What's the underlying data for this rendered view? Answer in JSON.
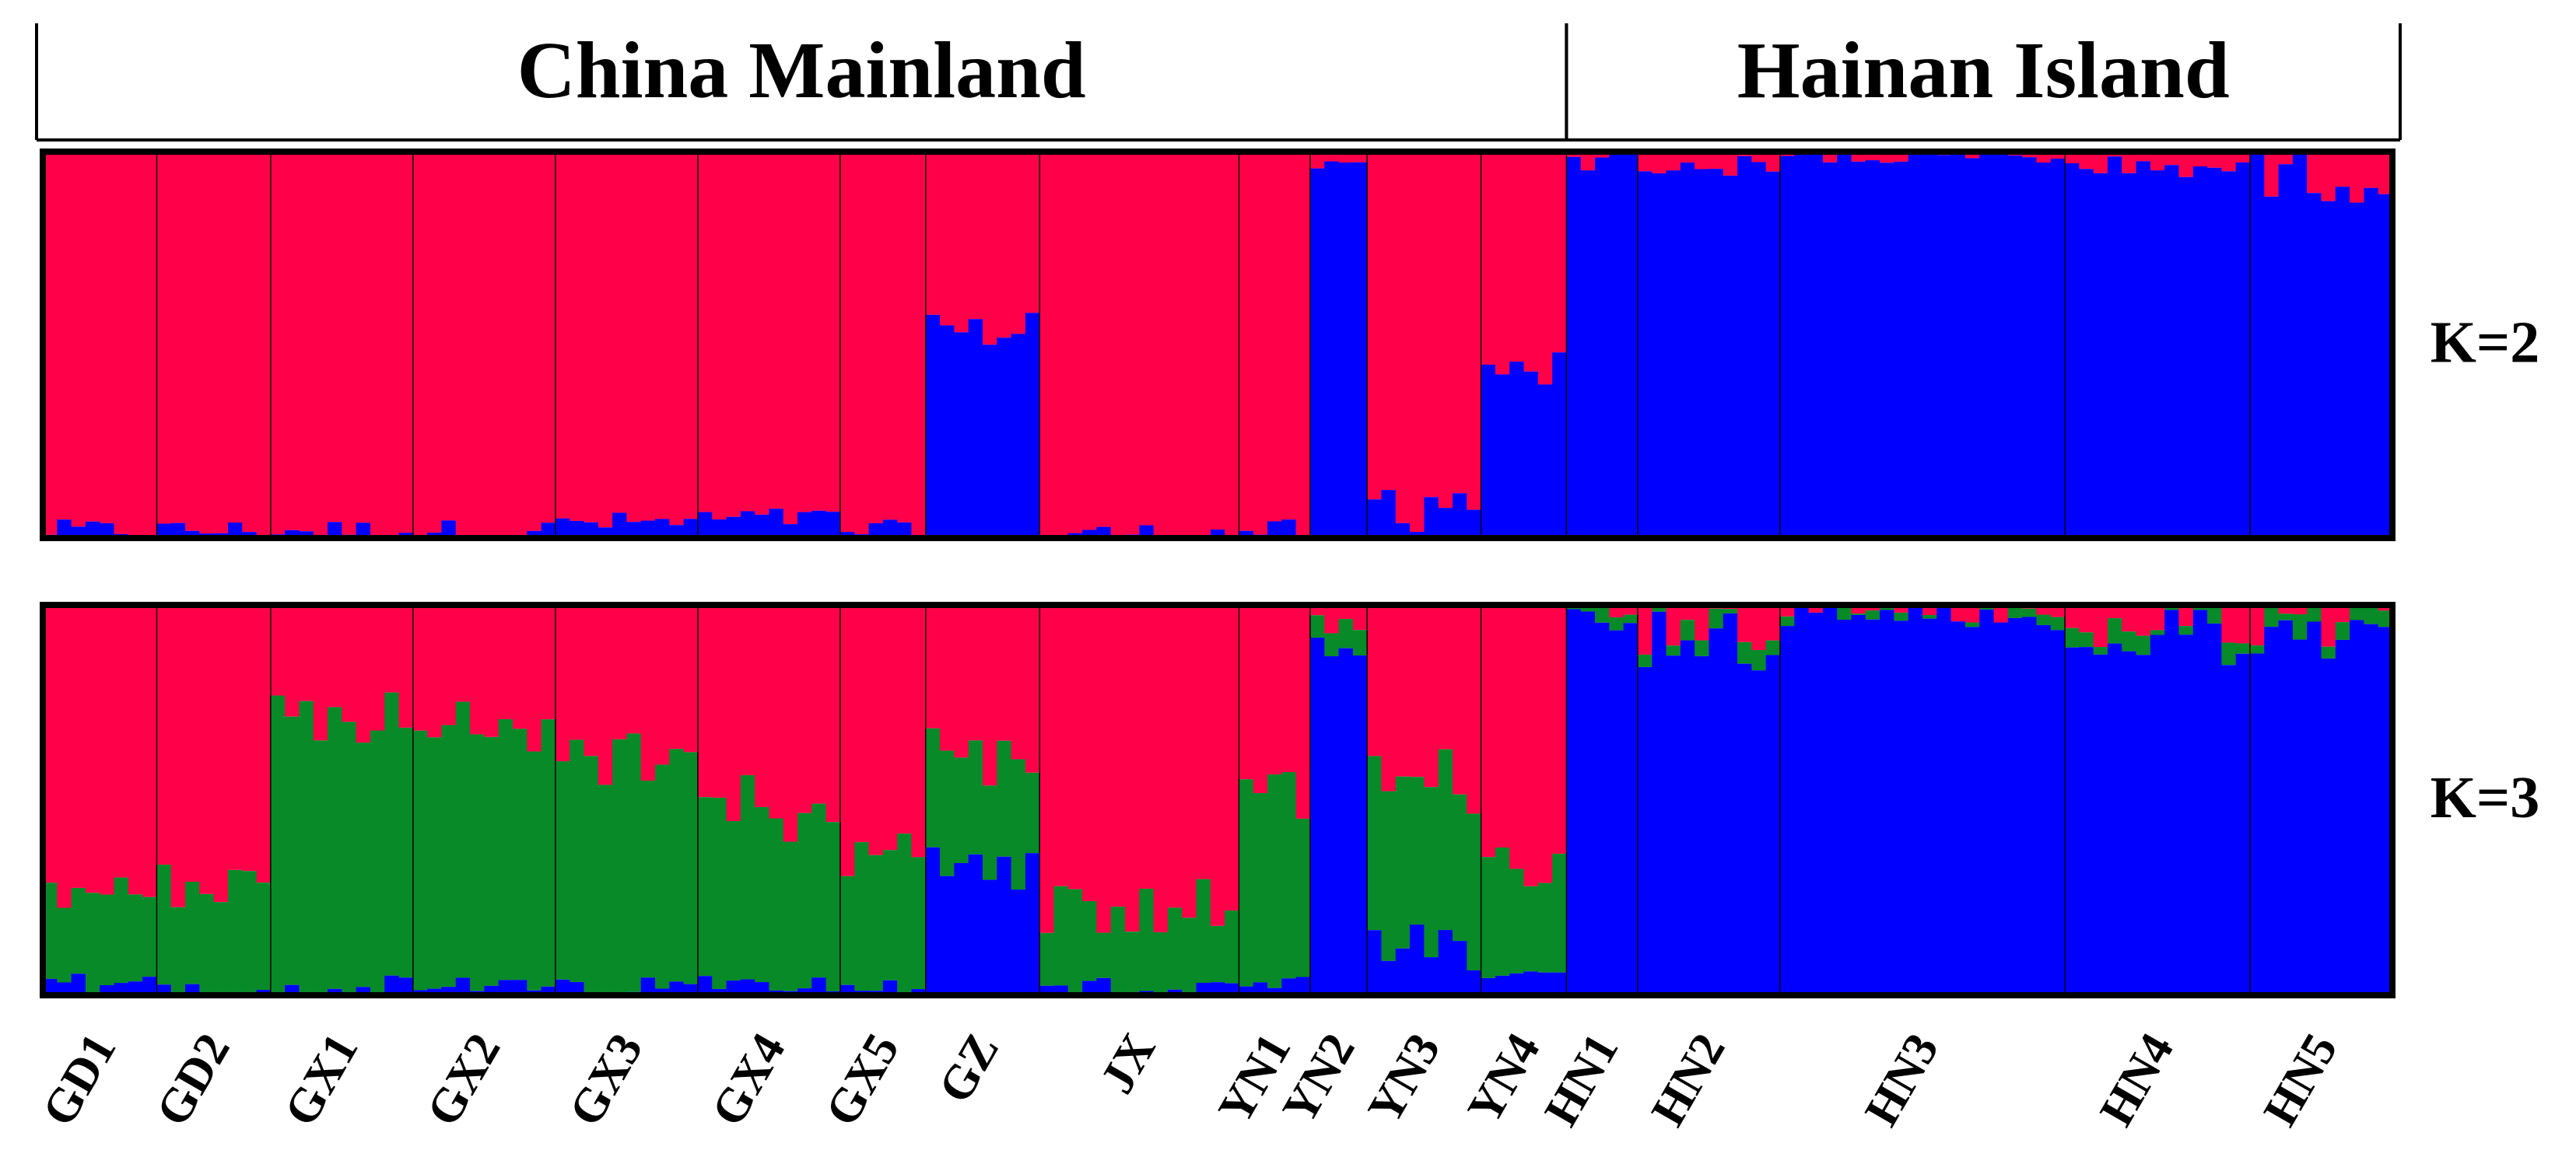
{
  "regions": [
    {
      "label": "China Mainland",
      "first_pop": 0,
      "last_pop": 12
    },
    {
      "label": "Hainan Island",
      "first_pop": 13,
      "last_pop": 17
    }
  ],
  "chart_data": {
    "type": "stacked-bar",
    "description_hint": "",
    "populations": [
      {
        "label": "GD1",
        "n": 8
      },
      {
        "label": "GD2",
        "n": 8
      },
      {
        "label": "GX1",
        "n": 10
      },
      {
        "label": "GX2",
        "n": 10
      },
      {
        "label": "GX3",
        "n": 10
      },
      {
        "label": "GX4",
        "n": 10
      },
      {
        "label": "GX5",
        "n": 6
      },
      {
        "label": "GZ",
        "n": 8
      },
      {
        "label": "JX",
        "n": 14
      },
      {
        "label": "YN1",
        "n": 5
      },
      {
        "label": "YN2",
        "n": 4
      },
      {
        "label": "YN3",
        "n": 8
      },
      {
        "label": "YN4",
        "n": 6
      },
      {
        "label": "HN1",
        "n": 5
      },
      {
        "label": "HN2",
        "n": 10
      },
      {
        "label": "HN3",
        "n": 20
      },
      {
        "label": "HN4",
        "n": 13
      },
      {
        "label": "HN5",
        "n": 10
      }
    ],
    "clusters_colors": {
      "red": "#ff0049",
      "blue": "#0000ff",
      "green": "#078a27"
    },
    "panels": [
      {
        "label": "K=2",
        "k": 2,
        "order": [
          "red",
          "blue"
        ],
        "pop_membership": [
          [
            0.98,
            0.02
          ],
          [
            0.98,
            0.02
          ],
          [
            0.98,
            0.02
          ],
          [
            0.98,
            0.02
          ],
          [
            0.96,
            0.04
          ],
          [
            0.95,
            0.05
          ],
          [
            0.98,
            0.02
          ],
          [
            0.45,
            0.55
          ],
          [
            0.99,
            0.01
          ],
          [
            0.98,
            0.02
          ],
          [
            0.04,
            0.96
          ],
          [
            0.9,
            0.1
          ],
          [
            0.55,
            0.45
          ],
          [
            0.02,
            0.98
          ],
          [
            0.04,
            0.96
          ],
          [
            0.01,
            0.99
          ],
          [
            0.04,
            0.96
          ],
          [
            0.06,
            0.94
          ]
        ]
      },
      {
        "label": "K=3",
        "k": 3,
        "order": [
          "red",
          "green",
          "blue"
        ],
        "pop_membership": [
          [
            0.72,
            0.26,
            0.02
          ],
          [
            0.72,
            0.26,
            0.02
          ],
          [
            0.28,
            0.7,
            0.02
          ],
          [
            0.32,
            0.66,
            0.02
          ],
          [
            0.4,
            0.58,
            0.02
          ],
          [
            0.52,
            0.44,
            0.04
          ],
          [
            0.62,
            0.36,
            0.02
          ],
          [
            0.38,
            0.28,
            0.34
          ],
          [
            0.78,
            0.2,
            0.02
          ],
          [
            0.48,
            0.5,
            0.02
          ],
          [
            0.05,
            0.05,
            0.9
          ],
          [
            0.45,
            0.45,
            0.1
          ],
          [
            0.65,
            0.3,
            0.05
          ],
          [
            0.01,
            0.02,
            0.97
          ],
          [
            0.06,
            0.04,
            0.9
          ],
          [
            0.02,
            0.01,
            0.97
          ],
          [
            0.06,
            0.04,
            0.9
          ],
          [
            0.06,
            0.04,
            0.9
          ]
        ]
      }
    ]
  }
}
